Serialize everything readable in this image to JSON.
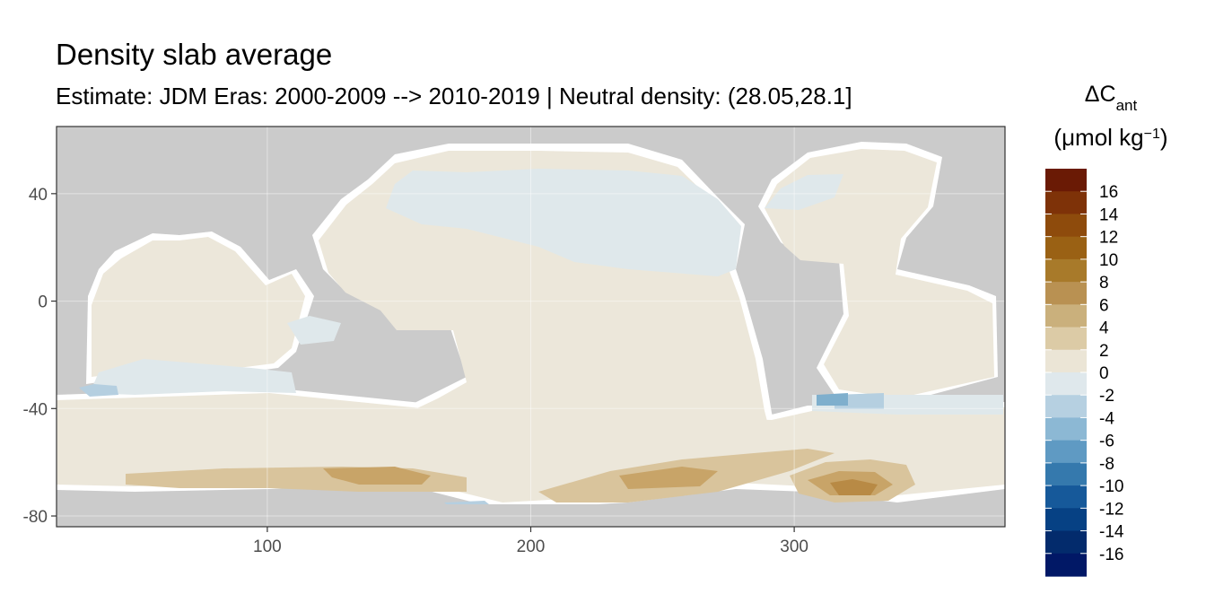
{
  "title": "Density slab average",
  "subtitle": "Estimate: JDM Eras: 2000-2009 --> 2010-2019 | Neutral density: (28.05,28.1]",
  "map": {
    "x_ticks": [
      "100",
      "200",
      "300"
    ],
    "x_tick_values": [
      100,
      200,
      300
    ],
    "y_ticks": [
      "40",
      "0",
      "-40",
      "-80"
    ],
    "y_tick_values": [
      40,
      0,
      -40,
      -80
    ],
    "xlim": [
      20,
      380
    ],
    "ylim": [
      -84,
      65
    ],
    "colors": {
      "land": "#cbcbcb",
      "ocean_nodata": "#ffffff",
      "neutral": "#ece7da",
      "slightly_negative": "#dfe8eb",
      "negative": "#b5cfe0",
      "more_negative": "#7fafcd",
      "positive_light": "#d9c49c",
      "positive_mid": "#c8a468",
      "positive_strong": "#b88a45"
    }
  },
  "legend": {
    "title_symbol": "ΔC",
    "title_subscript": "ant",
    "unit_prefix": "(μmol kg",
    "unit_superscript": "−1",
    "unit_suffix": ")",
    "labels": [
      "16",
      "14",
      "12",
      "10",
      "8",
      "6",
      "4",
      "2",
      "0",
      "-2",
      "-4",
      "-6",
      "-8",
      "-10",
      "-12",
      "-14",
      "-16"
    ],
    "colors": [
      "#6a1a05",
      "#7e3208",
      "#8e4b0c",
      "#9a6114",
      "#a87a2a",
      "#b99152",
      "#cab07c",
      "#dccba6",
      "#ebe5d6",
      "#dfe8ec",
      "#b6d0e1",
      "#8cb8d4",
      "#5f9ac3",
      "#3579ad",
      "#16599a",
      "#064184",
      "#032b6c",
      "#011866"
    ]
  }
}
